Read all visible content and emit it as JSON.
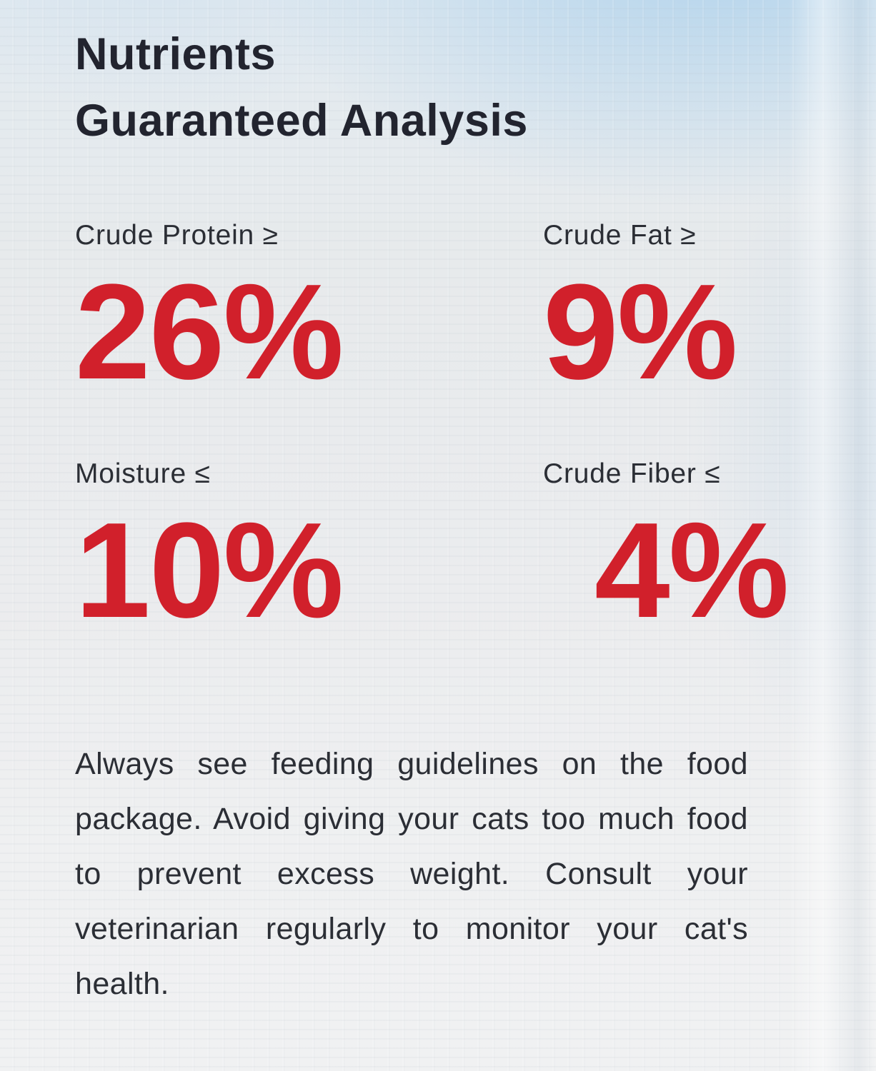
{
  "header": {
    "title_line1": "Nutrients",
    "title_line2": "Guaranteed Analysis"
  },
  "nutrients": [
    {
      "label": "Crude Protein ≥",
      "value": "26%"
    },
    {
      "label": "Crude Fat ≥",
      "value": "9%"
    },
    {
      "label": "Moisture ≤",
      "value": "10%"
    },
    {
      "label": "Crude Fiber ≤",
      "value": "4%"
    }
  ],
  "note": "Always see feeding guidelines on the food package. Avoid giving your cats too much food to prevent excess weight. Consult your veterinarian regularly to monitor your cat's health.",
  "colors": {
    "accent_red": "#d1202b",
    "heading": "#22242f",
    "body_text": "#2b2e35",
    "sky_tint": "#cfe3f1"
  }
}
